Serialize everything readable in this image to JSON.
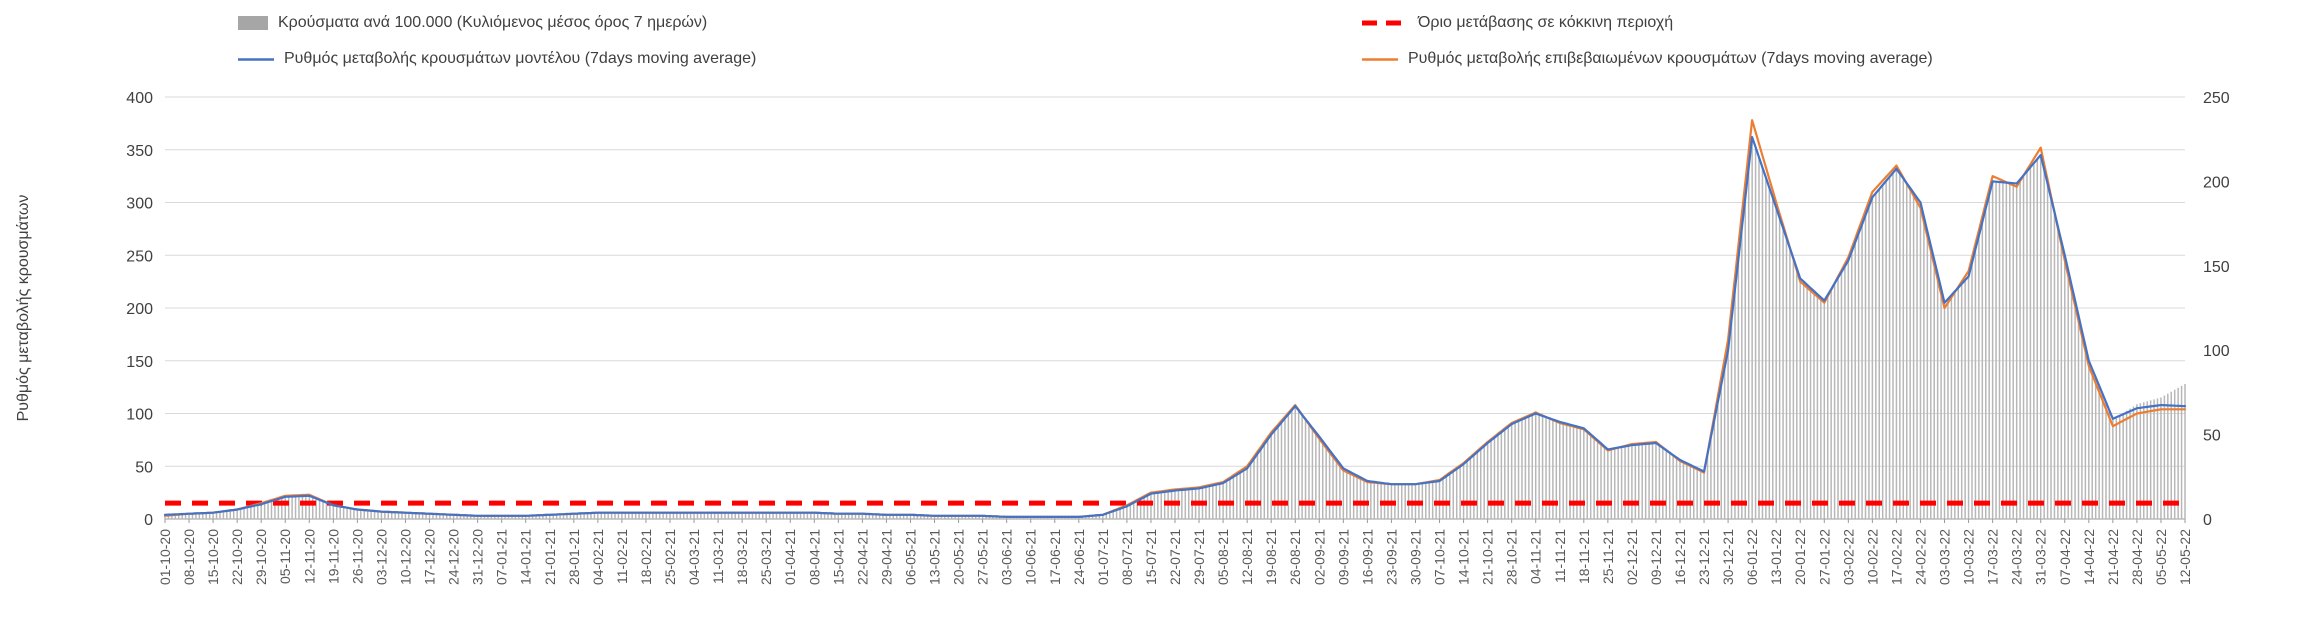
{
  "colors": {
    "bars": "#a6a6a6",
    "bars_stroke": "#b7b7b7",
    "model_line": "#4472c4",
    "confirmed_line": "#ed7d31",
    "threshold": "#ff0000",
    "grid": "#d9d9d9",
    "axis": "#9a9a9a",
    "text": "#404040"
  },
  "legend": {
    "bars_label": "Κρούσματα ανά 100.000 (Κυλιόμενος μέσος όρος 7 ημερών)",
    "threshold_label": "Όριο μετάβασης σε κόκκινη περιοχή",
    "model_label": "Ρυθμός μεταβολής κρουσμάτων μοντέλου (7days moving average)",
    "confirmed_label": "Ρυθμός μεταβολής επιβεβαιωμένων κρουσμάτων (7days moving average)"
  },
  "y_axis_title": "Ρυθμός μεταβολής κρουσμάτων",
  "chart_data": {
    "type": "composite",
    "subtypes": [
      "bar",
      "line",
      "line"
    ],
    "title": "",
    "grid": "horizontal",
    "legend_position": "top",
    "left_axis": {
      "label": "Ρυθμός μεταβολής κρουσμάτων",
      "min": 0,
      "max": 400,
      "tick_step": 50
    },
    "right_axis": {
      "label": "",
      "min": 0,
      "max": 250,
      "tick_step": 50
    },
    "threshold": {
      "label": "Όριο μετάβασης σε κόκκινη περιοχή",
      "value_left_axis": 15,
      "color": "#ff0000",
      "style": "dashed"
    },
    "x_labels": [
      "01-10-20",
      "08-10-20",
      "15-10-20",
      "22-10-20",
      "29-10-20",
      "05-11-20",
      "12-11-20",
      "19-11-20",
      "26-11-20",
      "03-12-20",
      "10-12-20",
      "17-12-20",
      "24-12-20",
      "31-12-20",
      "07-01-21",
      "14-01-21",
      "21-01-21",
      "28-01-21",
      "04-02-21",
      "11-02-21",
      "18-02-21",
      "25-02-21",
      "04-03-21",
      "11-03-21",
      "18-03-21",
      "25-03-21",
      "01-04-21",
      "08-04-21",
      "15-04-21",
      "22-04-21",
      "29-04-21",
      "06-05-21",
      "13-05-21",
      "20-05-21",
      "27-05-21",
      "03-06-21",
      "10-06-21",
      "17-06-21",
      "24-06-21",
      "01-07-21",
      "08-07-21",
      "15-07-21",
      "22-07-21",
      "29-07-21",
      "05-08-21",
      "12-08-21",
      "19-08-21",
      "26-08-21",
      "02-09-21",
      "09-09-21",
      "16-09-21",
      "23-09-21",
      "30-09-21",
      "07-10-21",
      "14-10-21",
      "21-10-21",
      "28-10-21",
      "04-11-21",
      "11-11-21",
      "18-11-21",
      "25-11-21",
      "02-12-21",
      "09-12-21",
      "16-12-21",
      "23-12-21",
      "30-12-21",
      "06-01-22",
      "13-01-22",
      "20-01-22",
      "27-01-22",
      "03-02-22",
      "10-02-22",
      "17-02-22",
      "24-02-22",
      "03-03-22",
      "10-03-22",
      "17-03-22",
      "24-03-22",
      "31-03-22",
      "07-04-22",
      "14-04-22",
      "21-04-22",
      "28-04-22",
      "05-05-22",
      "12-05-22"
    ],
    "series": [
      {
        "name": "Κρούσματα ανά 100.000 (Κυλιόμενος μέσος όρος 7 ημερών)",
        "type": "bar",
        "axis": "right",
        "color": "#b7b7b7",
        "values": [
          3,
          3,
          4,
          6,
          9,
          13,
          14,
          8,
          6,
          4,
          4,
          3,
          3,
          2,
          2,
          2,
          3,
          3,
          4,
          4,
          4,
          4,
          4,
          4,
          4,
          4,
          4,
          4,
          3,
          3,
          3,
          3,
          2,
          2,
          2,
          1,
          1,
          1,
          1,
          3,
          8,
          15,
          17,
          18,
          21,
          30,
          50,
          67,
          49,
          30,
          23,
          21,
          21,
          23,
          33,
          45,
          56,
          63,
          58,
          54,
          41,
          44,
          45,
          35,
          28,
          100,
          226,
          184,
          143,
          129,
          153,
          191,
          208,
          188,
          128,
          144,
          200,
          199,
          216,
          156,
          94,
          59,
          68,
          72,
          80
        ]
      },
      {
        "name": "Ρυθμός μεταβολής κρουσμάτων μοντέλου (7days moving average)",
        "type": "line",
        "axis": "left",
        "color": "#4472c4",
        "values": [
          4,
          5,
          6,
          9,
          14,
          21,
          22,
          13,
          9,
          7,
          6,
          5,
          4,
          3,
          3,
          3,
          4,
          5,
          6,
          6,
          6,
          6,
          6,
          6,
          6,
          6,
          6,
          6,
          5,
          5,
          4,
          4,
          3,
          3,
          3,
          2,
          2,
          2,
          2,
          4,
          12,
          24,
          27,
          29,
          34,
          48,
          80,
          107,
          78,
          48,
          36,
          33,
          33,
          36,
          52,
          72,
          90,
          100,
          92,
          86,
          66,
          70,
          72,
          56,
          45,
          160,
          362,
          295,
          228,
          207,
          245,
          305,
          332,
          300,
          205,
          230,
          320,
          318,
          345,
          250,
          150,
          95,
          105,
          108,
          107
        ]
      },
      {
        "name": "Ρυθμός μεταβολής επιβεβαιωμένων κρουσμάτων (7days moving average)",
        "type": "line",
        "axis": "left",
        "color": "#ed7d31",
        "values": [
          3,
          5,
          6,
          9,
          15,
          22,
          23,
          13,
          9,
          7,
          6,
          5,
          4,
          3,
          3,
          3,
          4,
          5,
          6,
          6,
          6,
          6,
          6,
          6,
          6,
          6,
          6,
          6,
          5,
          5,
          4,
          4,
          3,
          3,
          3,
          2,
          2,
          2,
          2,
          4,
          13,
          25,
          28,
          30,
          35,
          50,
          82,
          108,
          76,
          46,
          35,
          33,
          33,
          37,
          53,
          73,
          91,
          101,
          91,
          85,
          65,
          71,
          73,
          55,
          44,
          170,
          378,
          300,
          225,
          205,
          248,
          310,
          335,
          295,
          200,
          235,
          325,
          315,
          352,
          245,
          145,
          88,
          100,
          104,
          104
        ]
      }
    ]
  }
}
